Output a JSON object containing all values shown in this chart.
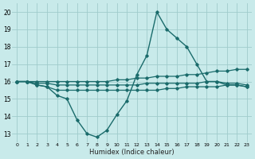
{
  "background_color": "#c8eaea",
  "grid_color": "#a0cccc",
  "line_color": "#1a6b6b",
  "marker_color": "#1a6b6b",
  "xlabel": "Humidex (Indice chaleur)",
  "xlim": [
    -0.5,
    23.5
  ],
  "ylim": [
    12.5,
    20.5
  ],
  "yticks": [
    13,
    14,
    15,
    16,
    17,
    18,
    19,
    20
  ],
  "xticks": [
    0,
    1,
    2,
    3,
    4,
    5,
    6,
    7,
    8,
    9,
    10,
    11,
    12,
    13,
    14,
    15,
    16,
    17,
    18,
    19,
    20,
    21,
    22,
    23
  ],
  "series": [
    {
      "x": [
        0,
        1,
        2,
        3,
        4,
        5,
        6,
        7,
        8,
        9,
        10,
        11,
        12,
        13,
        14,
        15,
        16,
        17,
        18,
        19,
        20,
        21,
        22,
        23
      ],
      "y": [
        16.0,
        16.0,
        15.8,
        15.7,
        15.2,
        15.0,
        13.8,
        13.0,
        12.8,
        13.2,
        14.1,
        14.9,
        16.4,
        17.5,
        20.0,
        19.0,
        18.5,
        18.0,
        17.0,
        16.0,
        16.0,
        15.8,
        15.8,
        15.7
      ],
      "lw": 1.0
    },
    {
      "x": [
        0,
        1,
        2,
        3,
        4,
        5,
        6,
        7,
        8,
        9,
        10,
        11,
        12,
        13,
        14,
        15,
        16,
        17,
        18,
        19,
        20,
        21,
        22,
        23
      ],
      "y": [
        16.0,
        16.0,
        16.0,
        16.0,
        16.0,
        16.0,
        16.0,
        16.0,
        16.0,
        16.0,
        16.1,
        16.1,
        16.2,
        16.2,
        16.3,
        16.3,
        16.3,
        16.4,
        16.4,
        16.5,
        16.6,
        16.6,
        16.7,
        16.7
      ],
      "lw": 0.9
    },
    {
      "x": [
        0,
        1,
        2,
        3,
        4,
        5,
        6,
        7,
        8,
        9,
        10,
        11,
        12,
        13,
        14,
        15,
        16,
        17,
        18,
        19,
        20,
        21,
        22,
        23
      ],
      "y": [
        16.0,
        16.0,
        15.9,
        15.9,
        15.8,
        15.8,
        15.8,
        15.8,
        15.8,
        15.8,
        15.8,
        15.8,
        15.8,
        15.9,
        15.9,
        15.9,
        15.9,
        15.9,
        15.9,
        16.0,
        16.0,
        15.9,
        15.9,
        15.8
      ],
      "lw": 0.9
    },
    {
      "x": [
        0,
        1,
        2,
        3,
        4,
        5,
        6,
        7,
        8,
        9,
        10,
        11,
        12,
        13,
        14,
        15,
        16,
        17,
        18,
        19,
        20,
        21,
        22,
        23
      ],
      "y": [
        16.0,
        16.0,
        15.8,
        15.7,
        15.5,
        15.5,
        15.5,
        15.5,
        15.5,
        15.5,
        15.5,
        15.5,
        15.5,
        15.5,
        15.5,
        15.6,
        15.6,
        15.7,
        15.7,
        15.7,
        15.7,
        15.8,
        15.8,
        15.7
      ],
      "lw": 0.9
    }
  ]
}
